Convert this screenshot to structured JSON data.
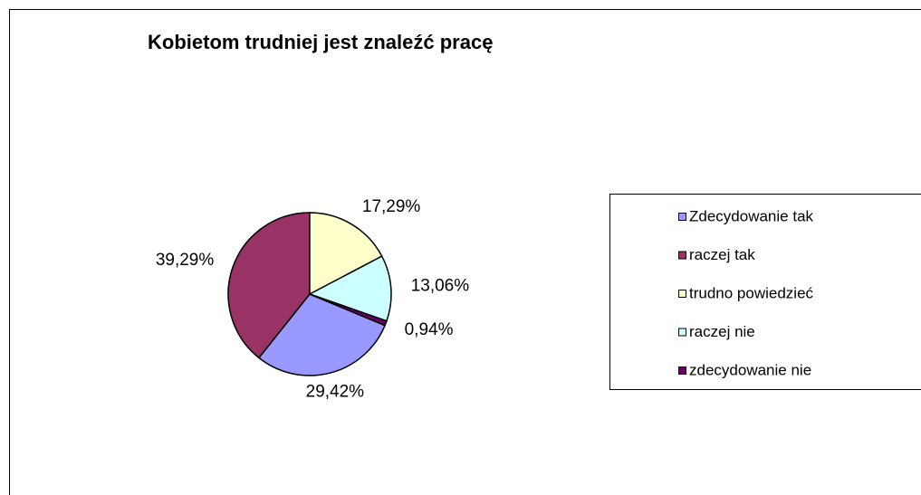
{
  "chart_data": {
    "type": "pie",
    "title": "Kobietom trudniej jest znaleźć pracę",
    "categories": [
      "Zdecydowanie tak",
      "raczej tak",
      "trudno powiedzieć",
      "raczej nie",
      "zdecydowanie nie"
    ],
    "values": [
      29.42,
      39.29,
      17.29,
      13.06,
      0.94
    ],
    "value_labels": [
      "29,42%",
      "39,29%",
      "17,29%",
      "13,06%",
      "0,94%"
    ],
    "colors": [
      "#9999ff",
      "#993366",
      "#ffffcc",
      "#ccffff",
      "#660066"
    ],
    "legend": "right"
  }
}
